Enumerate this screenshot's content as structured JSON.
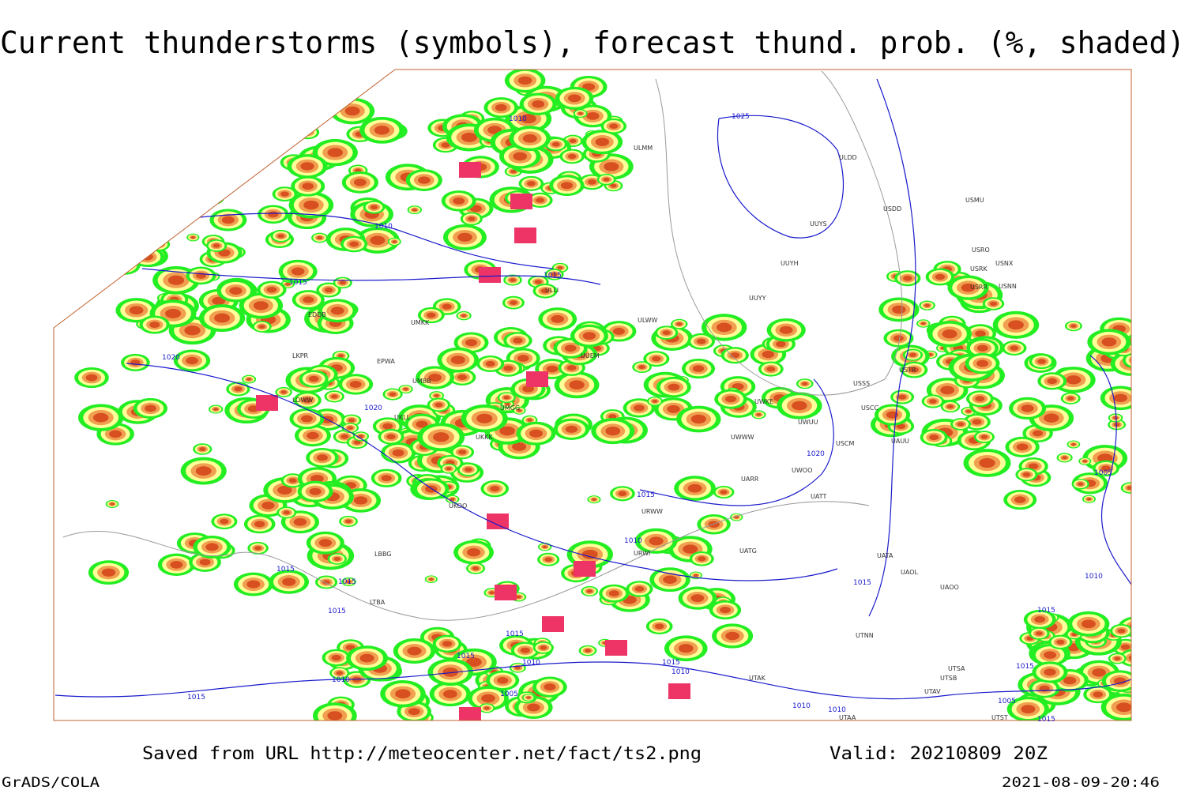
{
  "header": {
    "title": "Current thunderstorms (symbols), forecast thund. prob. (%, shaded)"
  },
  "footer": {
    "saved": "Saved from URL http://meteocenter.net/fact/ts2.png",
    "valid": "Valid: 20210809 20Z",
    "software": "GrADS/COLA",
    "timestamp": "2021-08-09-20:46"
  },
  "isobar_labels": [
    "1010",
    "1025",
    "1010",
    "1015",
    "1015",
    "1020",
    "1020",
    "1020",
    "1015",
    "1010",
    "1015",
    "1015",
    "1015",
    "1015",
    "1015",
    "1010",
    "1015",
    "1010",
    "1010",
    "1005",
    "1015",
    "1010",
    "1010",
    "1015",
    "1005",
    "1010",
    "1015",
    "1015",
    "1005",
    "1015"
  ],
  "stations": [
    "ULMM",
    "ULDD",
    "USDD",
    "USMU",
    "UUYS",
    "USRO",
    "USRK",
    "USNX",
    "UUYH",
    "USRR",
    "USNN",
    "UUYY",
    "ULLI",
    "UMKK",
    "EDDB",
    "ULWW",
    "UUEM",
    "EPWA",
    "UMBB",
    "LOWW",
    "UKLL",
    "UMGG",
    "USSS",
    "USTR",
    "USCC",
    "UWKE",
    "UWUU",
    "UWWW",
    "USCM",
    "UAUU",
    "UKKK",
    "UWOO",
    "UARR",
    "UATT",
    "URWW",
    "UKOO",
    "UATG",
    "UATA",
    "UAOL",
    "UAOO",
    "URWI",
    "UTNN",
    "UTAK",
    "UTAV",
    "UTAA",
    "UTSB",
    "UTSA",
    "UTST",
    "LKPR",
    "LBBG",
    "LTBA"
  ]
}
